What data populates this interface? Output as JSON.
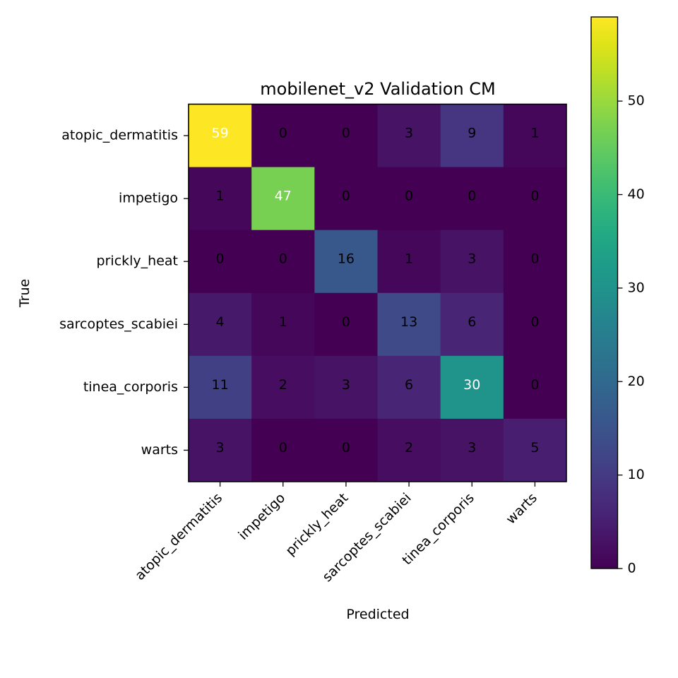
{
  "chart_data": {
    "type": "heatmap",
    "title": "mobilenet_v2 Validation CM",
    "xlabel": "Predicted",
    "ylabel": "True",
    "x_categories": [
      "atopic_dermatitis",
      "impetigo",
      "prickly_heat",
      "sarcoptes_scabiei",
      "tinea_corporis",
      "warts"
    ],
    "y_categories": [
      "atopic_dermatitis",
      "impetigo",
      "prickly_heat",
      "sarcoptes_scabiei",
      "tinea_corporis",
      "warts"
    ],
    "values": [
      [
        59,
        0,
        0,
        3,
        9,
        1
      ],
      [
        1,
        47,
        0,
        0,
        0,
        0
      ],
      [
        0,
        0,
        16,
        1,
        3,
        0
      ],
      [
        4,
        1,
        0,
        13,
        6,
        0
      ],
      [
        11,
        2,
        3,
        6,
        30,
        0
      ],
      [
        3,
        0,
        0,
        2,
        3,
        5
      ]
    ],
    "colormap": "viridis",
    "vmin": 0,
    "vmax": 59,
    "colorbar_ticks": [
      0,
      10,
      20,
      30,
      40,
      50
    ]
  }
}
